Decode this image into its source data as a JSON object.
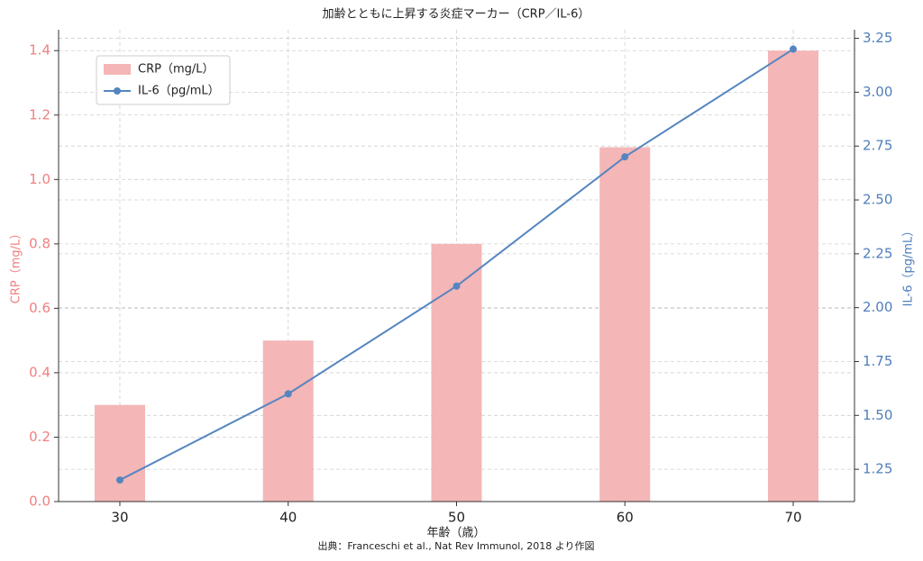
{
  "chart_data": {
    "type": "bar_line",
    "title": "加齢とともに上昇する炎症マーカー（CRP／IL-6）",
    "x_label": "年齢（歳）",
    "y_label": "CRP（mg/L）",
    "y2_label": "IL-6（pg/mL）",
    "source": "出典：Franceschi et al., Nat Rev Immunol, 2018 より作図",
    "x": [
      30,
      40,
      50,
      60,
      70
    ],
    "xlim": [
      26.36,
      73.64
    ],
    "xticks": [
      30,
      40,
      50,
      60,
      70
    ],
    "ylim": [
      0,
      1.465
    ],
    "yticks": [
      {
        "value": 0,
        "label": "0.0"
      },
      0.2,
      0.4,
      0.6,
      0.8,
      {
        "value": 1,
        "label": "1.0"
      },
      1.2,
      1.4
    ],
    "y2lim": [
      1.1,
      3.29
    ],
    "y2ticks": [
      1.25,
      {
        "value": 1.5,
        "label": "1.50"
      },
      1.75,
      {
        "value": 2,
        "label": "2.00"
      },
      2.25,
      {
        "value": 2.5,
        "label": "2.50"
      },
      2.75,
      {
        "value": 3,
        "label": "3.00"
      },
      3.25
    ],
    "grid": true,
    "legend": "upper-left",
    "series": [
      {
        "name": "CRP（mg/L）",
        "kind": "bar",
        "color": "#f4b6b6",
        "values": [
          0.3,
          0.5,
          0.8,
          1.1,
          1.4
        ]
      },
      {
        "name": "IL-6（pg/mL）",
        "kind": "line",
        "axis": "y2",
        "color": "#5585c0",
        "values": [
          1.2,
          1.6,
          2.1,
          2.7,
          3.2
        ]
      }
    ],
    "y_color": "#f08080",
    "y2_color": "#4f7fba"
  }
}
